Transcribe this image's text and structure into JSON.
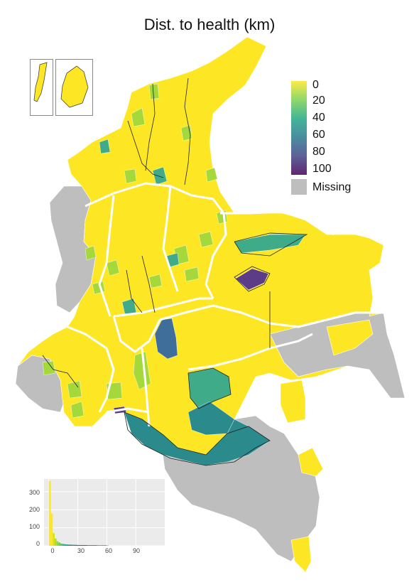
{
  "title": "Dist. to health (km)",
  "legend": {
    "labels": [
      "0",
      "20",
      "40",
      "60",
      "80",
      "100"
    ],
    "missing": "Missing",
    "colors": {
      "low": "#fde725",
      "mid1": "#7ad151",
      "mid2": "#22a884",
      "mid3": "#2a788e",
      "mid4": "#414487",
      "high": "#440154",
      "missing": "#bebebe"
    }
  },
  "histogram": {
    "y_ticks": [
      "300",
      "200",
      "100",
      "0"
    ],
    "x_ticks": [
      "0",
      "30",
      "60",
      "90"
    ]
  },
  "chart_data": {
    "type": "bar",
    "title": "",
    "x_ticks": [
      0,
      30,
      60,
      90
    ],
    "y_ticks": [
      0,
      100,
      200,
      300
    ],
    "xlim": [
      -5,
      120
    ],
    "ylim": [
      0,
      370
    ],
    "bins_x": [
      0,
      2,
      4,
      6,
      8,
      10,
      12,
      14,
      16,
      18,
      20,
      25,
      30,
      40,
      50,
      60
    ],
    "counts": [
      360,
      180,
      70,
      40,
      25,
      18,
      12,
      10,
      8,
      7,
      6,
      5,
      4,
      3,
      2,
      1
    ]
  }
}
